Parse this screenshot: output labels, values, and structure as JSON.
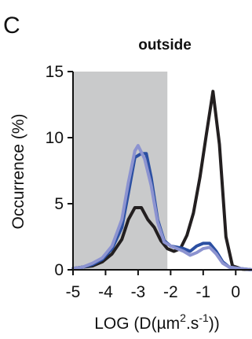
{
  "panel_label": "C",
  "chart_data": {
    "type": "line",
    "title": "outside",
    "xlabel": "LOG (D(µm².s⁻¹))",
    "xlabel_parts": [
      "LOG (D(µm",
      "2",
      ".s",
      "-1",
      "))"
    ],
    "ylabel": "Occurrence (%)",
    "xlim": [
      -5,
      0.5
    ],
    "ylim": [
      0,
      15
    ],
    "xticks": [
      -5,
      -4,
      -3,
      -2,
      -1,
      0
    ],
    "xtick_labels": [
      "-5",
      "-4",
      "-3",
      "-2",
      "-1",
      "0"
    ],
    "yticks": [
      0,
      5,
      10,
      15
    ],
    "ytick_labels": [
      "0",
      "5",
      "10",
      "15"
    ],
    "shaded_region": {
      "x": [
        -5,
        -2.1
      ],
      "color": "#c9cacb"
    },
    "grid": false,
    "legend": "none",
    "series": [
      {
        "color": "#231f20",
        "points": [
          [
            -5,
            0.1
          ],
          [
            -4.7,
            0.2
          ],
          [
            -4.4,
            0.3
          ],
          [
            -4.1,
            0.6
          ],
          [
            -3.8,
            1.2
          ],
          [
            -3.5,
            2.3
          ],
          [
            -3.3,
            3.8
          ],
          [
            -3.1,
            4.7
          ],
          [
            -2.9,
            4.7
          ],
          [
            -2.7,
            3.8
          ],
          [
            -2.5,
            3.2
          ],
          [
            -2.3,
            2.2
          ],
          [
            -2.1,
            1.6
          ],
          [
            -1.9,
            1.4
          ],
          [
            -1.7,
            1.6
          ],
          [
            -1.5,
            2.6
          ],
          [
            -1.3,
            4.3
          ],
          [
            -1.1,
            7.0
          ],
          [
            -0.9,
            10.3
          ],
          [
            -0.7,
            13.5
          ],
          [
            -0.5,
            9.5
          ],
          [
            -0.3,
            2.5
          ],
          [
            -0.1,
            0.3
          ],
          [
            0.2,
            0.05
          ],
          [
            0.5,
            0.0
          ]
        ]
      },
      {
        "color": "#2b4fa2",
        "points": [
          [
            -5,
            0.1
          ],
          [
            -4.7,
            0.2
          ],
          [
            -4.4,
            0.4
          ],
          [
            -4.1,
            0.8
          ],
          [
            -3.8,
            1.6
          ],
          [
            -3.5,
            3.2
          ],
          [
            -3.3,
            5.8
          ],
          [
            -3.1,
            8.5
          ],
          [
            -2.9,
            8.8
          ],
          [
            -2.75,
            8.8
          ],
          [
            -2.6,
            7.0
          ],
          [
            -2.4,
            3.8
          ],
          [
            -2.2,
            2.2
          ],
          [
            -2.0,
            1.8
          ],
          [
            -1.8,
            1.7
          ],
          [
            -1.6,
            1.6
          ],
          [
            -1.4,
            1.4
          ],
          [
            -1.2,
            1.8
          ],
          [
            -1.0,
            2.0
          ],
          [
            -0.8,
            2.0
          ],
          [
            -0.6,
            1.4
          ],
          [
            -0.4,
            0.6
          ],
          [
            -0.2,
            0.2
          ],
          [
            0.1,
            0.1
          ],
          [
            0.5,
            0.0
          ]
        ]
      },
      {
        "color": "#8c93d0",
        "points": [
          [
            -5,
            0.1
          ],
          [
            -4.7,
            0.2
          ],
          [
            -4.4,
            0.5
          ],
          [
            -4.1,
            0.9
          ],
          [
            -3.8,
            1.8
          ],
          [
            -3.5,
            3.8
          ],
          [
            -3.3,
            6.6
          ],
          [
            -3.1,
            9.0
          ],
          [
            -3.0,
            9.4
          ],
          [
            -2.8,
            8.4
          ],
          [
            -2.6,
            6.4
          ],
          [
            -2.4,
            3.6
          ],
          [
            -2.2,
            2.1
          ],
          [
            -2.0,
            1.8
          ],
          [
            -1.8,
            1.6
          ],
          [
            -1.6,
            1.4
          ],
          [
            -1.4,
            1.1
          ],
          [
            -1.2,
            1.3
          ],
          [
            -1.0,
            1.6
          ],
          [
            -0.8,
            1.7
          ],
          [
            -0.6,
            1.2
          ],
          [
            -0.4,
            0.5
          ],
          [
            -0.2,
            0.2
          ],
          [
            0.1,
            0.1
          ],
          [
            0.5,
            0.0
          ]
        ]
      }
    ]
  }
}
